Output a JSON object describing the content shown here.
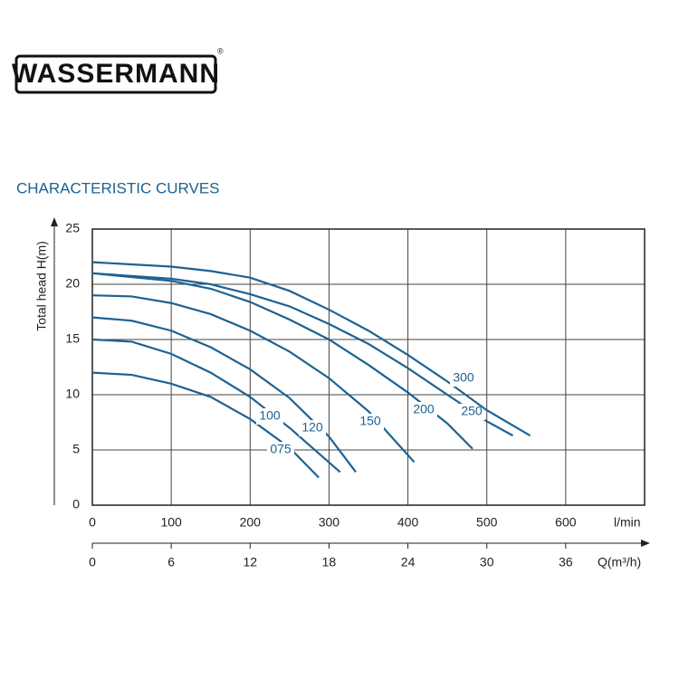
{
  "brand": "WASSERMANN",
  "brand_mark": "®",
  "chart_data": {
    "type": "line",
    "title": "CHARACTERISTIC CURVES",
    "y_label": "Total head  H(m)",
    "x_label": "l/min",
    "x2_label": "Q(m³/h)",
    "xlim": [
      0,
      700
    ],
    "xticks": [
      0,
      100,
      200,
      300,
      400,
      500,
      600
    ],
    "x2lim": [
      0,
      42
    ],
    "x2ticks": [
      0,
      6,
      12,
      18,
      24,
      30,
      36
    ],
    "ylim": [
      0,
      25
    ],
    "yticks": [
      0,
      5,
      10,
      15,
      20,
      25
    ],
    "grid": true,
    "series": [
      {
        "name": "075",
        "color": "#1d6293",
        "x": [
          0,
          50,
          100,
          150,
          200,
          250,
          287
        ],
        "values": [
          12,
          11.8,
          11,
          9.8,
          7.8,
          5.2,
          2.5
        ]
      },
      {
        "name": "100",
        "color": "#1d6293",
        "x": [
          0,
          50,
          100,
          150,
          200,
          250,
          314
        ],
        "values": [
          15,
          14.8,
          13.7,
          12,
          9.8,
          7,
          3
        ]
      },
      {
        "name": "120",
        "color": "#1d6293",
        "x": [
          0,
          50,
          100,
          150,
          200,
          250,
          300,
          334
        ],
        "values": [
          17,
          16.7,
          15.8,
          14.3,
          12.3,
          9.7,
          6.2,
          3
        ]
      },
      {
        "name": "150",
        "color": "#1d6293",
        "x": [
          0,
          50,
          100,
          150,
          200,
          250,
          300,
          350,
          408
        ],
        "values": [
          19,
          18.9,
          18.3,
          17.3,
          15.8,
          13.9,
          11.5,
          8.5,
          3.9
        ]
      },
      {
        "name": "200",
        "color": "#1d6293",
        "x": [
          0,
          100,
          150,
          200,
          250,
          300,
          350,
          400,
          450,
          482
        ],
        "values": [
          21,
          20.3,
          19.6,
          18.4,
          16.8,
          15,
          12.7,
          10.2,
          7.4,
          5.1
        ]
      },
      {
        "name": "250",
        "color": "#1d6293",
        "x": [
          0,
          100,
          150,
          200,
          250,
          300,
          350,
          400,
          450,
          500,
          533
        ],
        "values": [
          21,
          20.5,
          20,
          19.1,
          18,
          16.4,
          14.6,
          12.4,
          10,
          7.6,
          6.3
        ]
      },
      {
        "name": "300",
        "color": "#1d6293",
        "x": [
          0,
          100,
          150,
          200,
          250,
          300,
          350,
          400,
          450,
          500,
          555
        ],
        "values": [
          22,
          21.6,
          21.2,
          20.6,
          19.4,
          17.7,
          15.8,
          13.6,
          11.2,
          8.6,
          6.3
        ]
      }
    ]
  }
}
